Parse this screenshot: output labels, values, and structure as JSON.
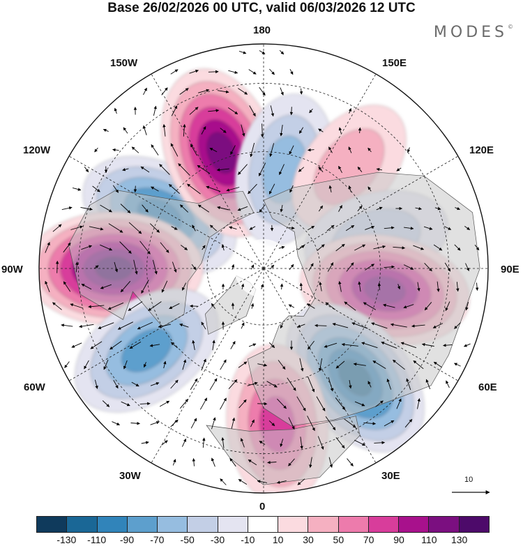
{
  "title": "Base 26/02/2026 00 UTC, valid 06/03/2026 12 UTC",
  "brand": "MODES",
  "brand_mark": "©",
  "longitude_labels": {
    "lon_180": "180",
    "lon_150w": "150W",
    "lon_150e": "150E",
    "lon_120w": "120W",
    "lon_120e": "120E",
    "lon_90w": "90W",
    "lon_90e": "90E",
    "lon_60w": "60W",
    "lon_60e": "60E",
    "lon_30w": "30W",
    "lon_30e": "30E",
    "lon_0": "0"
  },
  "reference_vector_label": "10",
  "colorbar": {
    "tick_labels": [
      "-130",
      "-110",
      "-90",
      "-70",
      "-50",
      "-30",
      "-10",
      "10",
      "30",
      "50",
      "70",
      "90",
      "110",
      "130"
    ],
    "colors": [
      "#0f3a5c",
      "#1a6796",
      "#3184ba",
      "#5d9fcd",
      "#96bde0",
      "#c3cfe6",
      "#e4e4f1",
      "#ffffff",
      "#fbdbe0",
      "#f5b0c1",
      "#ed7bac",
      "#d83d9b",
      "#a8118c",
      "#7b0f80",
      "#4d0a6a"
    ]
  },
  "anomaly_centers": [
    {
      "name": "low-150w",
      "sign": "negative",
      "level": -90,
      "lon": -117,
      "lat": 50
    },
    {
      "name": "high-165w",
      "sign": "positive",
      "level": 120,
      "lon": -160,
      "lat": 48
    },
    {
      "name": "low-170e",
      "sign": "negative",
      "level": -60,
      "lon": 168,
      "lat": 55
    },
    {
      "name": "high-140e",
      "sign": "positive",
      "level": 30,
      "lon": 140,
      "lat": 45
    },
    {
      "name": "low-110e",
      "sign": "negative",
      "level": -40,
      "lon": 105,
      "lat": 50
    },
    {
      "name": "high-90w",
      "sign": "positive",
      "level": 130,
      "lon": -90,
      "lat": 40
    },
    {
      "name": "high-80e",
      "sign": "positive",
      "level": 110,
      "lon": 80,
      "lat": 48
    },
    {
      "name": "low-60w",
      "sign": "negative",
      "level": -80,
      "lon": -55,
      "lat": 42
    },
    {
      "name": "low-45e",
      "sign": "negative",
      "level": -110,
      "lon": 40,
      "lat": 42
    },
    {
      "name": "high-10e",
      "sign": "positive",
      "level": 80,
      "lon": 5,
      "lat": 38
    }
  ]
}
